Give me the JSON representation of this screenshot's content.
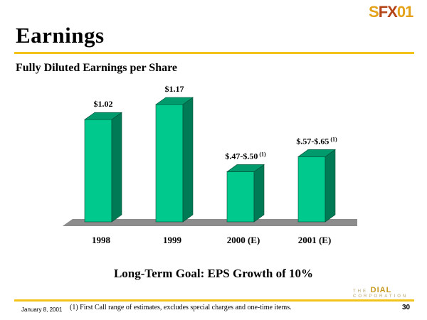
{
  "title": "Earnings",
  "subtitle": "Fully Diluted Earnings per Share",
  "logo": {
    "part1": "S",
    "part2": "FX",
    "part3": "01"
  },
  "goal": "Long-Term Goal: EPS Growth of 10%",
  "footnote": "(1) First Call range of estimates, excludes special charges and one-time items.",
  "date": "January 8, 2001",
  "page_number": "30",
  "brand": {
    "prefix": "THE",
    "name": "DIAL",
    "suffix": "CORPORATION"
  },
  "colors": {
    "bar_front": "#00c98d",
    "bar_side": "#007a55",
    "bar_top": "#009a6c",
    "floor": "#8c8c8c",
    "rule": "#f2c318"
  },
  "chart_data": {
    "type": "bar",
    "title": "Fully Diluted Earnings per Share",
    "categories": [
      "1998",
      "1999",
      "2000 (E)",
      "2001 (E)"
    ],
    "values": [
      1.02,
      1.17,
      0.5,
      0.65
    ],
    "data_labels": [
      "$1.02",
      "$1.17",
      "$.47-$.50",
      "$.57-$.65"
    ],
    "label_notes": [
      "",
      "",
      "(1)",
      "(1)"
    ],
    "ylim": [
      0,
      1.3
    ],
    "grid": false,
    "xlabel": "",
    "ylabel": ""
  }
}
